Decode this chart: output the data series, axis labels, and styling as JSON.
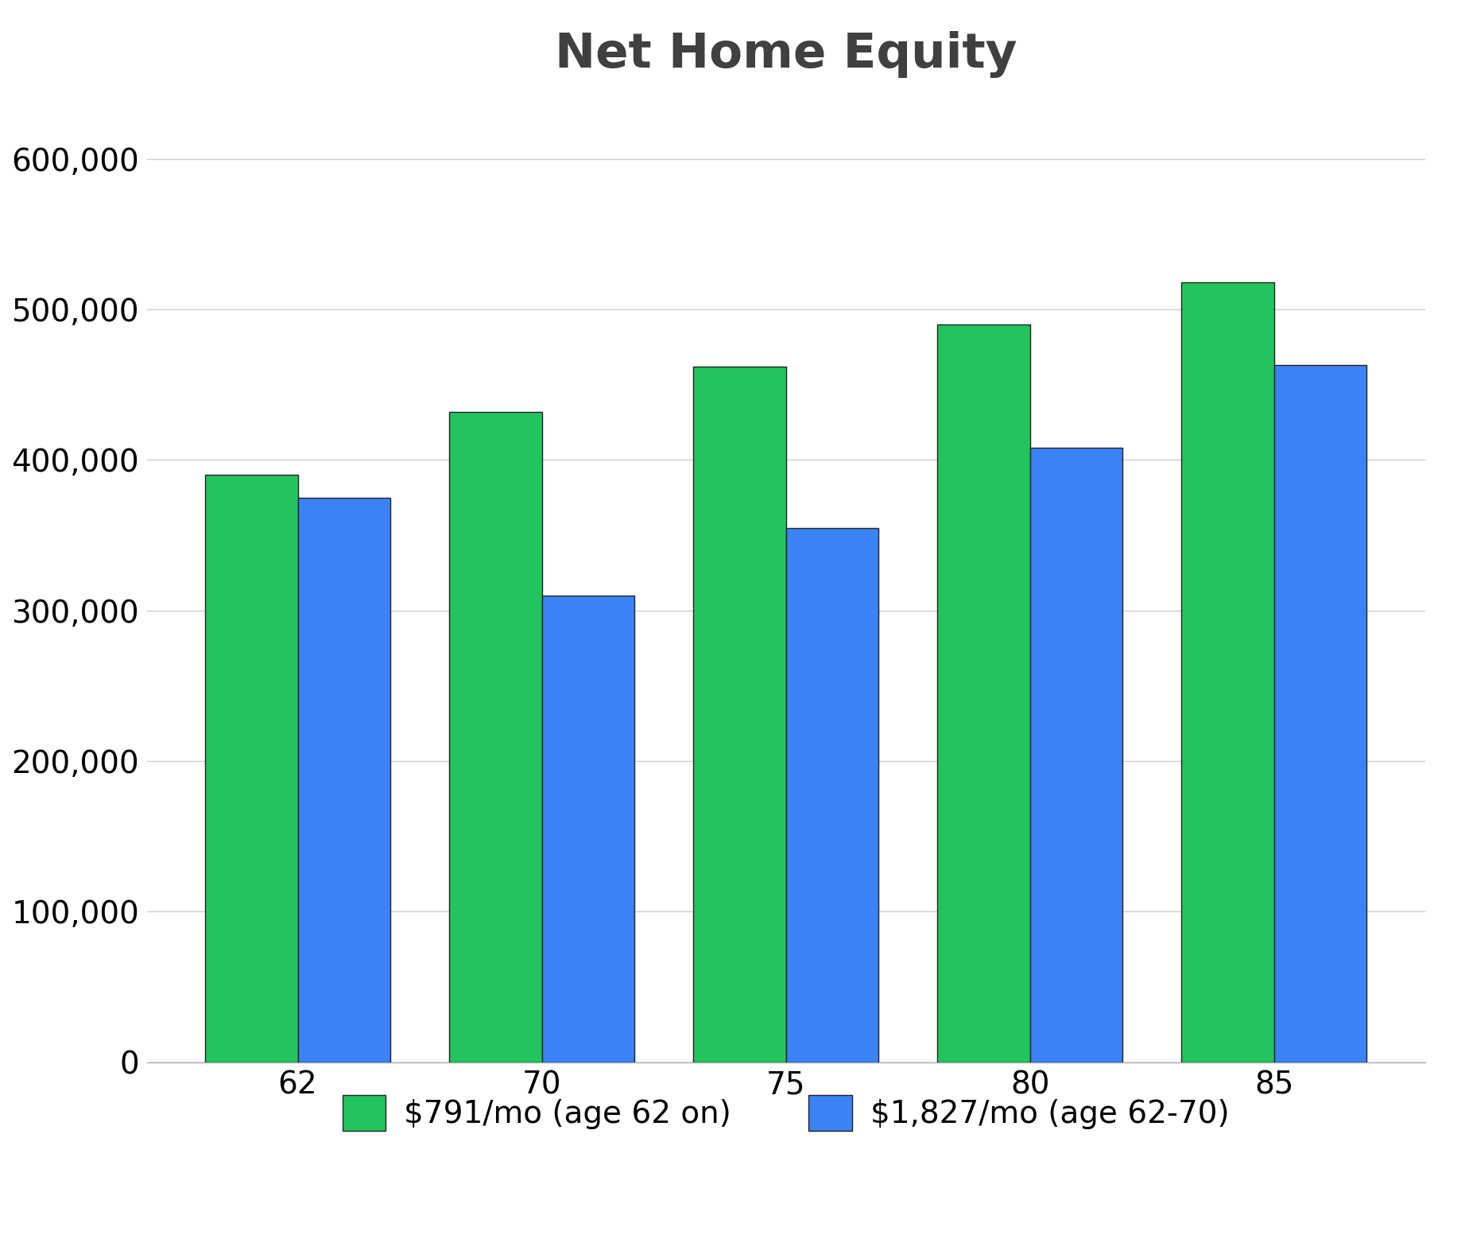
{
  "title": "Net Home Equity",
  "categories": [
    "62",
    "70",
    "75",
    "80",
    "85"
  ],
  "series": [
    {
      "label": "$791/mo (age 62 on)",
      "color": "#21C45D",
      "values": [
        390000,
        432000,
        462000,
        490000,
        518000
      ]
    },
    {
      "label": "$1,827/mo (age 62-70)",
      "color": "#3B82F6",
      "values": [
        375000,
        310000,
        355000,
        408000,
        463000
      ]
    }
  ],
  "ylim": [
    0,
    640000
  ],
  "yticks": [
    0,
    100000,
    200000,
    300000,
    400000,
    500000,
    600000
  ],
  "background_color": "#ffffff",
  "plot_bg_color": "#ffffff",
  "title_color": "#404040",
  "title_fontsize": 44,
  "tick_fontsize": 28,
  "legend_fontsize": 28,
  "bar_width": 0.38,
  "bar_edge_color": "#222222",
  "bar_edge_width": 1.0,
  "grid_color": "#cccccc",
  "grid_linewidth": 1.0
}
